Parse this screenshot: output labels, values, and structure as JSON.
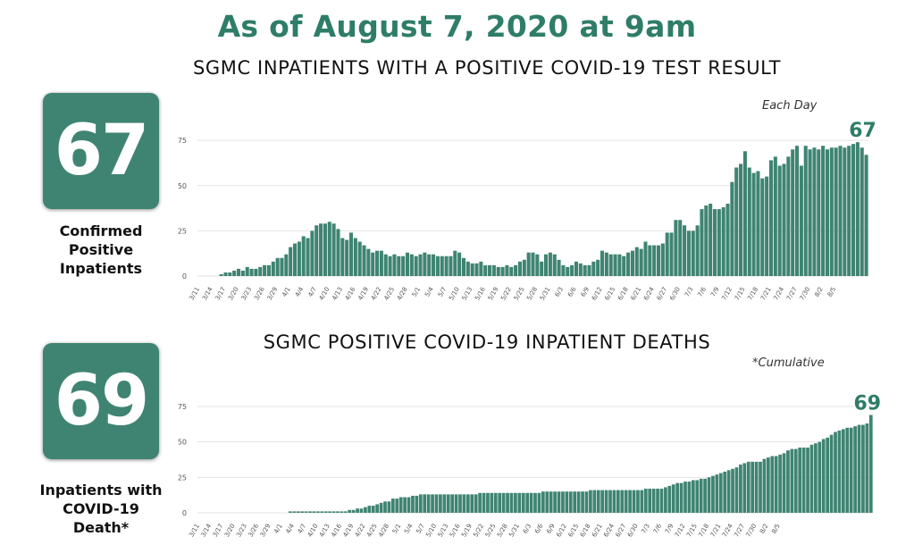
{
  "headline": "As of August 7, 2020 at 9am",
  "stats": [
    {
      "number": "67",
      "label_lines": [
        "Confirmed",
        "Positive",
        "Inpatients"
      ]
    },
    {
      "number": "69",
      "label_lines": [
        "Inpatients with",
        "COVID-19",
        "Death*"
      ]
    }
  ],
  "colors": {
    "accent": "#2e7d68",
    "bar": "#3f8472",
    "box": "#3f8472",
    "grid": "#e3e3e3"
  },
  "chart_data": [
    {
      "type": "bar",
      "title": "SGMC INPATIENTS WITH A POSITIVE COVID-19 TEST RESULT",
      "note": "Each Day",
      "end_label": "67",
      "ylim": [
        0,
        80
      ],
      "yticks": [
        0,
        25,
        50,
        75
      ],
      "grid": true,
      "x_tick_labels": [
        "3/11",
        "3/14",
        "3/17",
        "3/20",
        "3/23",
        "3/26",
        "3/29",
        "4/1",
        "4/4",
        "4/7",
        "4/10",
        "4/13",
        "4/16",
        "4/19",
        "4/22",
        "4/25",
        "4/28",
        "5/1",
        "5/4",
        "5/7",
        "5/10",
        "5/13",
        "5/16",
        "5/19",
        "5/22",
        "5/25",
        "5/28",
        "5/31",
        "6/3",
        "6/6",
        "6/9",
        "6/12",
        "6/15",
        "6/18",
        "6/21",
        "6/24",
        "6/27",
        "6/30",
        "7/3",
        "7/6",
        "7/9",
        "7/12",
        "7/15",
        "7/18",
        "7/21",
        "7/24",
        "7/27",
        "7/30",
        "8/2",
        "8/5"
      ],
      "start_date": "3/11",
      "values": [
        0,
        0,
        0,
        0,
        0,
        1,
        2,
        2,
        3,
        4,
        3,
        5,
        4,
        4,
        5,
        6,
        6,
        8,
        10,
        10,
        12,
        16,
        18,
        19,
        22,
        21,
        25,
        28,
        29,
        29,
        30,
        29,
        26,
        21,
        20,
        24,
        21,
        19,
        17,
        15,
        13,
        14,
        14,
        12,
        11,
        12,
        11,
        11,
        13,
        12,
        11,
        12,
        13,
        12,
        12,
        11,
        11,
        11,
        11,
        14,
        13,
        10,
        8,
        7,
        7,
        8,
        6,
        6,
        6,
        5,
        5,
        6,
        5,
        6,
        8,
        9,
        13,
        13,
        12,
        8,
        12,
        13,
        12,
        9,
        6,
        5,
        6,
        8,
        7,
        6,
        6,
        8,
        9,
        14,
        13,
        12,
        12,
        12,
        11,
        13,
        14,
        16,
        15,
        19,
        17,
        17,
        17,
        18,
        24,
        24,
        31,
        31,
        28,
        25,
        25,
        28,
        37,
        39,
        40,
        37,
        37,
        38,
        40,
        52,
        60,
        62,
        69,
        60,
        57,
        58,
        54,
        55,
        64,
        66,
        61,
        62,
        66,
        70,
        72,
        61,
        72,
        70,
        71,
        70,
        72,
        70,
        71,
        71,
        72,
        71,
        72,
        73,
        74,
        71,
        67
      ]
    },
    {
      "type": "bar",
      "title": "SGMC POSITIVE COVID-19 INPATIENT DEATHS",
      "note": "*Cumulative",
      "end_label": "69",
      "ylim": [
        0,
        80
      ],
      "yticks": [
        0,
        25,
        50,
        75
      ],
      "grid": true,
      "x_tick_labels": [
        "3/11",
        "3/14",
        "3/17",
        "3/20",
        "3/23",
        "3/26",
        "3/29",
        "4/1",
        "4/4",
        "4/7",
        "4/10",
        "4/13",
        "4/16",
        "4/19",
        "4/22",
        "4/25",
        "4/28",
        "5/1",
        "5/4",
        "5/7",
        "5/10",
        "5/13",
        "5/16",
        "5/19",
        "5/22",
        "5/25",
        "5/28",
        "5/31",
        "6/3",
        "6/6",
        "6/9",
        "6/12",
        "6/15",
        "6/18",
        "6/21",
        "6/24",
        "6/27",
        "6/30",
        "7/3",
        "7/6",
        "7/9",
        "7/12",
        "7/15",
        "7/18",
        "7/21",
        "7/24",
        "7/27",
        "7/30",
        "8/2",
        "8/5"
      ],
      "start_date": "3/11",
      "values": [
        0,
        0,
        0,
        0,
        0,
        0,
        0,
        0,
        0,
        0,
        0,
        0,
        0,
        0,
        0,
        0,
        0,
        0,
        0,
        0,
        0,
        0,
        0,
        1,
        1,
        1,
        1,
        1,
        1,
        1,
        1,
        1,
        1,
        1,
        1,
        1,
        1,
        1,
        2,
        2,
        3,
        3,
        4,
        5,
        5,
        6,
        7,
        8,
        8,
        10,
        10,
        11,
        11,
        11,
        12,
        12,
        13,
        13,
        13,
        13,
        13,
        13,
        13,
        13,
        13,
        13,
        13,
        13,
        13,
        13,
        13,
        14,
        14,
        14,
        14,
        14,
        14,
        14,
        14,
        14,
        14,
        14,
        14,
        14,
        14,
        14,
        14,
        15,
        15,
        15,
        15,
        15,
        15,
        15,
        15,
        15,
        15,
        15,
        15,
        16,
        16,
        16,
        16,
        16,
        16,
        16,
        16,
        16,
        16,
        16,
        16,
        16,
        16,
        17,
        17,
        17,
        17,
        17,
        18,
        19,
        20,
        21,
        21,
        22,
        22,
        23,
        23,
        24,
        24,
        25,
        26,
        27,
        28,
        29,
        30,
        31,
        32,
        34,
        35,
        36,
        36,
        36,
        36,
        38,
        39,
        40,
        40,
        41,
        42,
        44,
        45,
        45,
        46,
        46,
        46,
        48,
        49,
        50,
        52,
        53,
        55,
        57,
        58,
        59,
        60,
        60,
        61,
        62,
        62,
        63,
        69
      ]
    }
  ]
}
